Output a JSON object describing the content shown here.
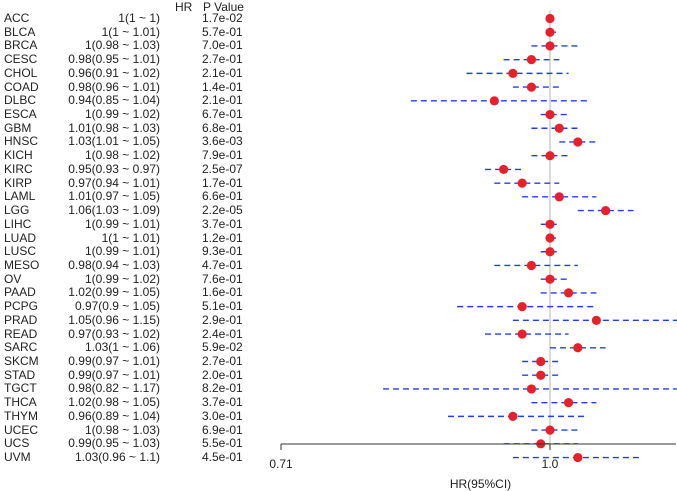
{
  "chart_data": {
    "type": "forest",
    "xlabel": "HR(95%CI)",
    "xticks": [
      "0.71",
      "1.0"
    ],
    "xlim": [
      0.71,
      1.41
    ],
    "reference_line": 1.0,
    "headers": {
      "hr": "HR",
      "p": "P Value"
    },
    "rows": [
      {
        "name": "ACC",
        "hr_text": "1(1 ~ 1)",
        "p_text": "1.7e-02",
        "hr": 1.0,
        "lo": 1.0,
        "hi": 1.0
      },
      {
        "name": "BLCA",
        "hr_text": "1(1 ~ 1.01)",
        "p_text": "5.7e-01",
        "hr": 1.0,
        "lo": 1.0,
        "hi": 1.01
      },
      {
        "name": "BRCA",
        "hr_text": "1(0.98 ~ 1.03)",
        "p_text": "7.0e-01",
        "hr": 1.0,
        "lo": 0.98,
        "hi": 1.03
      },
      {
        "name": "CESC",
        "hr_text": "0.98(0.95 ~ 1.01)",
        "p_text": "2.7e-01",
        "hr": 0.98,
        "lo": 0.95,
        "hi": 1.01
      },
      {
        "name": "CHOL",
        "hr_text": "0.96(0.91 ~ 1.02)",
        "p_text": "2.1e-01",
        "hr": 0.96,
        "lo": 0.91,
        "hi": 1.02
      },
      {
        "name": "COAD",
        "hr_text": "0.98(0.96 ~ 1.01)",
        "p_text": "1.4e-01",
        "hr": 0.98,
        "lo": 0.96,
        "hi": 1.01
      },
      {
        "name": "DLBC",
        "hr_text": "0.94(0.85 ~ 1.04)",
        "p_text": "2.1e-01",
        "hr": 0.94,
        "lo": 0.85,
        "hi": 1.04
      },
      {
        "name": "ESCA",
        "hr_text": "1(0.99 ~ 1.02)",
        "p_text": "6.7e-01",
        "hr": 1.0,
        "lo": 0.99,
        "hi": 1.02
      },
      {
        "name": "GBM",
        "hr_text": "1.01(0.98 ~ 1.03)",
        "p_text": "6.8e-01",
        "hr": 1.01,
        "lo": 0.98,
        "hi": 1.03
      },
      {
        "name": "HNSC",
        "hr_text": "1.03(1.01 ~ 1.05)",
        "p_text": "3.6e-03",
        "hr": 1.03,
        "lo": 1.01,
        "hi": 1.05
      },
      {
        "name": "KICH",
        "hr_text": "1(0.98 ~ 1.02)",
        "p_text": "7.9e-01",
        "hr": 1.0,
        "lo": 0.98,
        "hi": 1.02
      },
      {
        "name": "KIRC",
        "hr_text": "0.95(0.93 ~ 0.97)",
        "p_text": "2.5e-07",
        "hr": 0.95,
        "lo": 0.93,
        "hi": 0.97
      },
      {
        "name": "KIRP",
        "hr_text": "0.97(0.94 ~ 1.01)",
        "p_text": "1.7e-01",
        "hr": 0.97,
        "lo": 0.94,
        "hi": 1.01
      },
      {
        "name": "LAML",
        "hr_text": "1.01(0.97 ~ 1.05)",
        "p_text": "6.6e-01",
        "hr": 1.01,
        "lo": 0.97,
        "hi": 1.05
      },
      {
        "name": "LGG",
        "hr_text": "1.06(1.03 ~ 1.09)",
        "p_text": "2.2e-05",
        "hr": 1.06,
        "lo": 1.03,
        "hi": 1.09
      },
      {
        "name": "LIHC",
        "hr_text": "1(0.99 ~ 1.01)",
        "p_text": "3.7e-01",
        "hr": 1.0,
        "lo": 0.99,
        "hi": 1.01
      },
      {
        "name": "LUAD",
        "hr_text": "1(1 ~ 1.01)",
        "p_text": "1.2e-01",
        "hr": 1.0,
        "lo": 1.0,
        "hi": 1.01
      },
      {
        "name": "LUSC",
        "hr_text": "1(0.99 ~ 1.01)",
        "p_text": "9.3e-01",
        "hr": 1.0,
        "lo": 0.99,
        "hi": 1.01
      },
      {
        "name": "MESO",
        "hr_text": "0.98(0.94 ~ 1.03)",
        "p_text": "4.7e-01",
        "hr": 0.98,
        "lo": 0.94,
        "hi": 1.03
      },
      {
        "name": "OV",
        "hr_text": "1(0.99 ~ 1.02)",
        "p_text": "7.6e-01",
        "hr": 1.0,
        "lo": 0.99,
        "hi": 1.02
      },
      {
        "name": "PAAD",
        "hr_text": "1.02(0.99 ~ 1.05)",
        "p_text": "1.6e-01",
        "hr": 1.02,
        "lo": 0.99,
        "hi": 1.05
      },
      {
        "name": "PCPG",
        "hr_text": "0.97(0.9 ~ 1.05)",
        "p_text": "5.1e-01",
        "hr": 0.97,
        "lo": 0.9,
        "hi": 1.05
      },
      {
        "name": "PRAD",
        "hr_text": "1.05(0.96 ~ 1.15)",
        "p_text": "2.9e-01",
        "hr": 1.05,
        "lo": 0.96,
        "hi": 1.15
      },
      {
        "name": "READ",
        "hr_text": "0.97(0.93 ~ 1.02)",
        "p_text": "2.4e-01",
        "hr": 0.97,
        "lo": 0.93,
        "hi": 1.02
      },
      {
        "name": "SARC",
        "hr_text": "1.03(1 ~ 1.06)",
        "p_text": "5.9e-02",
        "hr": 1.03,
        "lo": 1.0,
        "hi": 1.06
      },
      {
        "name": "SKCM",
        "hr_text": "0.99(0.97 ~ 1.01)",
        "p_text": "2.7e-01",
        "hr": 0.99,
        "lo": 0.97,
        "hi": 1.01
      },
      {
        "name": "STAD",
        "hr_text": "0.99(0.97 ~ 1.01)",
        "p_text": "2.0e-01",
        "hr": 0.99,
        "lo": 0.97,
        "hi": 1.01
      },
      {
        "name": "TGCT",
        "hr_text": "0.98(0.82 ~ 1.17)",
        "p_text": "8.2e-01",
        "hr": 0.98,
        "lo": 0.82,
        "hi": 1.17
      },
      {
        "name": "THCA",
        "hr_text": "1.02(0.98 ~ 1.05)",
        "p_text": "3.7e-01",
        "hr": 1.02,
        "lo": 0.98,
        "hi": 1.05
      },
      {
        "name": "THYM",
        "hr_text": "0.96(0.89 ~ 1.04)",
        "p_text": "3.0e-01",
        "hr": 0.96,
        "lo": 0.89,
        "hi": 1.04
      },
      {
        "name": "UCEC",
        "hr_text": "1(0.98 ~ 1.03)",
        "p_text": "6.9e-01",
        "hr": 1.0,
        "lo": 0.98,
        "hi": 1.03
      },
      {
        "name": "UCS",
        "hr_text": "0.99(0.95 ~ 1.03)",
        "p_text": "5.5e-01",
        "hr": 0.99,
        "lo": 0.95,
        "hi": 1.03
      },
      {
        "name": "UVM",
        "hr_text": "1.03(0.96 ~ 1.1)",
        "p_text": "4.5e-01",
        "hr": 1.03,
        "lo": 0.96,
        "hi": 1.1
      }
    ]
  },
  "colors": {
    "point": "#e8202a",
    "ci_line": "#2040e0",
    "ref_line": "#b4b4b4",
    "axis": "#333333"
  }
}
